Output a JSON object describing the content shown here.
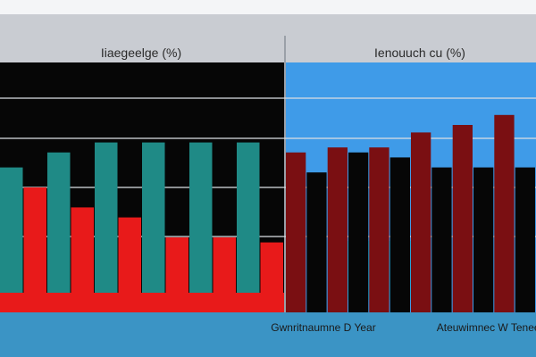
{
  "colors": {
    "frame": "#c9ccd2",
    "black": "#060606",
    "red": "#e81a1a",
    "dark_red": "#7a0f12",
    "teal": "#1f8a86",
    "sky": "#3f9be8",
    "cyan": "#23a4d8",
    "footer": "#3b94c5",
    "label": "#2a2a2a"
  },
  "chart_data": [
    {
      "type": "bar",
      "title": "Iiaegeelge (%)",
      "xlabel": "Gwnritnaumne D Year",
      "ylim": [
        0,
        100
      ],
      "series": [
        {
          "values": [
            58,
            64,
            68,
            68,
            68,
            68
          ]
        },
        {
          "values": [
            50,
            42,
            38,
            30,
            30,
            28
          ]
        }
      ],
      "grid": true
    },
    {
      "type": "bar",
      "title": "Ienouuch cu (%)",
      "xlabel": "Ateuwimnec W Teneee",
      "ylim": [
        0,
        100
      ],
      "series": [
        {
          "values": [
            64,
            66,
            66,
            72,
            75,
            79
          ]
        },
        {
          "values": [
            56,
            64,
            62,
            58,
            58,
            58
          ]
        }
      ],
      "grid": true
    }
  ]
}
